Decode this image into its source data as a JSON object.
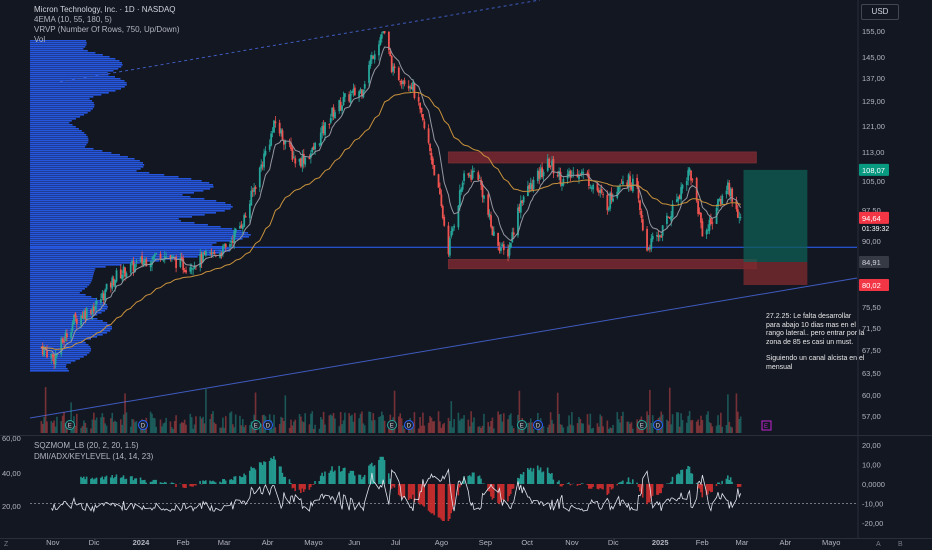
{
  "header": {
    "symbol_line": "Micron Technology, Inc. · 1D · NASDAQ",
    "indicator_ema": "4EMA (10, 55, 180, 5)",
    "indicator_vrvp": "VRVP (Number Of Rows, 750, Up/Down)",
    "indicator_vol": "Vol",
    "currency_button": "USD"
  },
  "subpane": {
    "indicator_sqz": "SQZMOM_LB (20, 2, 20, 1.5)",
    "indicator_dmi": "DMI/ADX/KEYLEVEL (14, 14, 23)",
    "left_ticks": [
      "60,00",
      "40,00",
      "20,00"
    ],
    "right_ticks": [
      "20,00",
      "10,00",
      "0,0000",
      "-10,00",
      "-20,00"
    ]
  },
  "annotation": {
    "line1": "27.2.25: Le falta desarrollar para abajo 10 dias mas en el rango lateral.. pero entrar por la zona de 85 es casi un must.",
    "line2": "Siguiendo un canal alcista en el mensual"
  },
  "chart_data": {
    "type": "candlestick",
    "price_axis_ticks": [
      "155,00",
      "145,00",
      "137,00",
      "129,00",
      "121,00",
      "113,00",
      "105,00",
      "97,50",
      "90,00",
      "84,91",
      "80,02",
      "75,50",
      "71,50",
      "67,50",
      "63,50",
      "60,00",
      "57,00"
    ],
    "time_axis_labels": [
      "Nov",
      "Dic",
      "2024",
      "Feb",
      "Mar",
      "Abr",
      "Mayo",
      "Jun",
      "Jul",
      "Ago",
      "Sep",
      "Oct",
      "Nov",
      "Dic",
      "2025",
      "Feb",
      "Mar",
      "Abr",
      "Mayo"
    ],
    "price_labels": {
      "target": "108,07",
      "last": "94,64",
      "countdown": "01:39:32",
      "support": "84,91",
      "stop": "80,02"
    },
    "colors": {
      "up": "#26a69a",
      "down": "#ef5350",
      "ema_fast": "#9598a1",
      "ema_slow": "#c9923c",
      "profile": "#2962ff",
      "zone": "#b2323b",
      "position": "#0f5f56"
    },
    "price_path": [
      [
        "2023-10-23",
        68
      ],
      [
        "2023-11-01",
        66
      ],
      [
        "2023-11-15",
        73
      ],
      [
        "2023-12-01",
        76
      ],
      [
        "2023-12-15",
        82
      ],
      [
        "2024-01-02",
        85
      ],
      [
        "2024-01-15",
        87
      ],
      [
        "2024-02-01",
        84
      ],
      [
        "2024-02-15",
        86
      ],
      [
        "2024-03-01",
        88
      ],
      [
        "2024-03-15",
        96
      ],
      [
        "2024-03-25",
        108
      ],
      [
        "2024-04-05",
        122
      ],
      [
        "2024-04-20",
        110
      ],
      [
        "2024-05-01",
        113
      ],
      [
        "2024-05-15",
        125
      ],
      [
        "2024-05-25",
        130
      ],
      [
        "2024-06-05",
        133
      ],
      [
        "2024-06-15",
        150
      ],
      [
        "2024-06-20",
        157
      ],
      [
        "2024-06-27",
        139
      ],
      [
        "2024-07-10",
        135
      ],
      [
        "2024-07-25",
        110
      ],
      [
        "2024-08-05",
        88
      ],
      [
        "2024-08-15",
        105
      ],
      [
        "2024-08-25",
        108
      ],
      [
        "2024-09-05",
        92
      ],
      [
        "2024-09-15",
        86
      ],
      [
        "2024-09-25",
        100
      ],
      [
        "2024-10-05",
        105
      ],
      [
        "2024-10-15",
        110
      ],
      [
        "2024-10-25",
        105
      ],
      [
        "2024-11-05",
        108
      ],
      [
        "2024-11-15",
        104
      ],
      [
        "2024-11-25",
        99
      ],
      [
        "2024-12-05",
        106
      ],
      [
        "2024-12-15",
        104
      ],
      [
        "2024-12-22",
        88
      ],
      [
        "2025-01-02",
        92
      ],
      [
        "2025-01-10",
        98
      ],
      [
        "2025-01-22",
        108
      ],
      [
        "2025-02-01",
        91
      ],
      [
        "2025-02-10",
        98
      ],
      [
        "2025-02-18",
        104
      ],
      [
        "2025-02-27",
        94.64
      ]
    ],
    "zones": [
      {
        "from": "2024-08-05",
        "to": "2025-03-10",
        "low": 110,
        "high": 113
      },
      {
        "from": "2024-08-05",
        "to": "2025-03-10",
        "low": 83.5,
        "high": 85.5
      }
    ],
    "hline": 88.5,
    "position": {
      "from": "2025-03-01",
      "to": "2025-04-15",
      "entry": 84.91,
      "target": 108.07,
      "stop": 80.02
    },
    "sub_y_range": [
      -20,
      20
    ]
  },
  "bottom_icons": [
    "gear-icon"
  ]
}
